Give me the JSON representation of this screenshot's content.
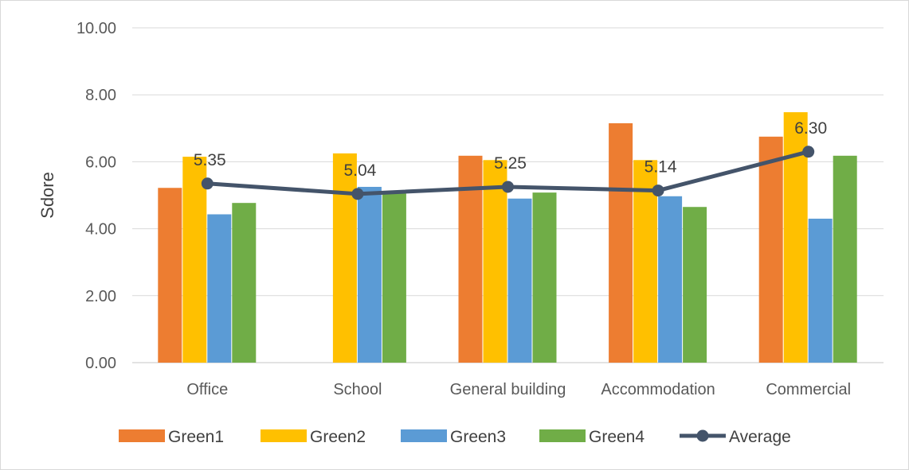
{
  "chart_data": {
    "type": "bar",
    "title": "",
    "xlabel": "",
    "ylabel": "Sdore",
    "ylim": [
      0,
      10
    ],
    "yticks": [
      "0.00",
      "2.00",
      "4.00",
      "6.00",
      "8.00",
      "10.00"
    ],
    "grid": true,
    "legend_position": "bottom",
    "categories": [
      "Office",
      "School",
      "General building",
      "Accommodation",
      "Commercial"
    ],
    "series": [
      {
        "name": "Green1",
        "type": "bar",
        "color": "#ED7D31",
        "values": [
          5.22,
          null,
          6.18,
          7.15,
          6.75
        ]
      },
      {
        "name": "Green2",
        "type": "bar",
        "color": "#FFC000",
        "values": [
          6.15,
          6.25,
          6.05,
          6.05,
          7.48
        ]
      },
      {
        "name": "Green3",
        "type": "bar",
        "color": "#5B9BD5",
        "values": [
          4.43,
          5.25,
          4.9,
          4.97,
          4.3
        ]
      },
      {
        "name": "Green4",
        "type": "bar",
        "color": "#70AD47",
        "values": [
          4.77,
          5.05,
          5.08,
          4.65,
          6.18
        ]
      },
      {
        "name": "Average",
        "type": "line",
        "color": "#44546A",
        "values": [
          5.35,
          5.04,
          5.25,
          5.14,
          6.3
        ],
        "labels": [
          "5.35",
          "5.04",
          "5.25",
          "5.14",
          "6.30"
        ]
      }
    ]
  }
}
